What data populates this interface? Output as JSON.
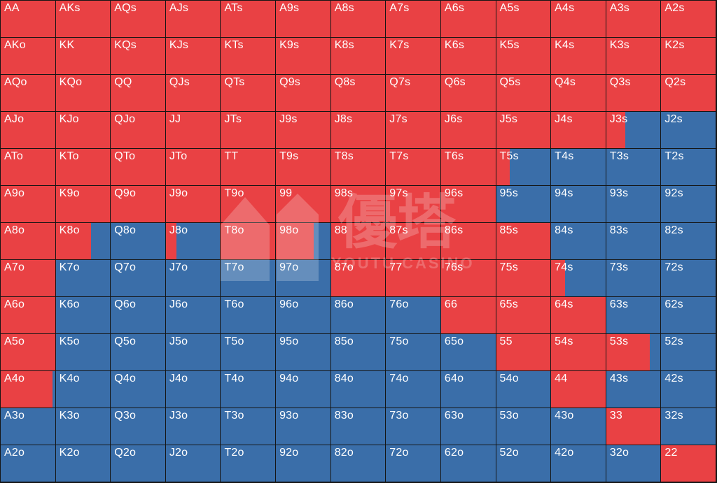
{
  "chart_data": {
    "type": "table",
    "colors": {
      "raise": "#e94144",
      "fold": "#3a6ea9",
      "border": "#151515"
    },
    "legend_note": "",
    "rows": [
      [
        {
          "hand": "AA",
          "freq": 1
        },
        {
          "hand": "AKs",
          "freq": 1
        },
        {
          "hand": "AQs",
          "freq": 1
        },
        {
          "hand": "AJs",
          "freq": 1
        },
        {
          "hand": "ATs",
          "freq": 1
        },
        {
          "hand": "A9s",
          "freq": 1
        },
        {
          "hand": "A8s",
          "freq": 1
        },
        {
          "hand": "A7s",
          "freq": 1
        },
        {
          "hand": "A6s",
          "freq": 1
        },
        {
          "hand": "A5s",
          "freq": 1
        },
        {
          "hand": "A4s",
          "freq": 1
        },
        {
          "hand": "A3s",
          "freq": 1
        },
        {
          "hand": "A2s",
          "freq": 1
        }
      ],
      [
        {
          "hand": "AKo",
          "freq": 1
        },
        {
          "hand": "KK",
          "freq": 1
        },
        {
          "hand": "KQs",
          "freq": 1
        },
        {
          "hand": "KJs",
          "freq": 1
        },
        {
          "hand": "KTs",
          "freq": 1
        },
        {
          "hand": "K9s",
          "freq": 1
        },
        {
          "hand": "K8s",
          "freq": 1
        },
        {
          "hand": "K7s",
          "freq": 1
        },
        {
          "hand": "K6s",
          "freq": 1
        },
        {
          "hand": "K5s",
          "freq": 1
        },
        {
          "hand": "K4s",
          "freq": 1
        },
        {
          "hand": "K3s",
          "freq": 1
        },
        {
          "hand": "K2s",
          "freq": 1
        }
      ],
      [
        {
          "hand": "AQo",
          "freq": 1
        },
        {
          "hand": "KQo",
          "freq": 1
        },
        {
          "hand": "QQ",
          "freq": 1
        },
        {
          "hand": "QJs",
          "freq": 1
        },
        {
          "hand": "QTs",
          "freq": 1
        },
        {
          "hand": "Q9s",
          "freq": 1
        },
        {
          "hand": "Q8s",
          "freq": 1
        },
        {
          "hand": "Q7s",
          "freq": 1
        },
        {
          "hand": "Q6s",
          "freq": 1
        },
        {
          "hand": "Q5s",
          "freq": 1
        },
        {
          "hand": "Q4s",
          "freq": 1
        },
        {
          "hand": "Q3s",
          "freq": 1
        },
        {
          "hand": "Q2s",
          "freq": 1
        }
      ],
      [
        {
          "hand": "AJo",
          "freq": 1
        },
        {
          "hand": "KJo",
          "freq": 1
        },
        {
          "hand": "QJo",
          "freq": 1
        },
        {
          "hand": "JJ",
          "freq": 1
        },
        {
          "hand": "JTs",
          "freq": 1
        },
        {
          "hand": "J9s",
          "freq": 1
        },
        {
          "hand": "J8s",
          "freq": 1
        },
        {
          "hand": "J7s",
          "freq": 1
        },
        {
          "hand": "J6s",
          "freq": 1
        },
        {
          "hand": "J5s",
          "freq": 1
        },
        {
          "hand": "J4s",
          "freq": 1
        },
        {
          "hand": "J3s",
          "freq": 0.35
        },
        {
          "hand": "J2s",
          "freq": 0
        }
      ],
      [
        {
          "hand": "ATo",
          "freq": 1
        },
        {
          "hand": "KTo",
          "freq": 1
        },
        {
          "hand": "QTo",
          "freq": 1
        },
        {
          "hand": "JTo",
          "freq": 1
        },
        {
          "hand": "TT",
          "freq": 1
        },
        {
          "hand": "T9s",
          "freq": 1
        },
        {
          "hand": "T8s",
          "freq": 1
        },
        {
          "hand": "T7s",
          "freq": 1
        },
        {
          "hand": "T6s",
          "freq": 1
        },
        {
          "hand": "T5s",
          "freq": 0.25
        },
        {
          "hand": "T4s",
          "freq": 0
        },
        {
          "hand": "T3s",
          "freq": 0
        },
        {
          "hand": "T2s",
          "freq": 0
        }
      ],
      [
        {
          "hand": "A9o",
          "freq": 1
        },
        {
          "hand": "K9o",
          "freq": 1
        },
        {
          "hand": "Q9o",
          "freq": 1
        },
        {
          "hand": "J9o",
          "freq": 1
        },
        {
          "hand": "T9o",
          "freq": 1
        },
        {
          "hand": "99",
          "freq": 1
        },
        {
          "hand": "98s",
          "freq": 1
        },
        {
          "hand": "97s",
          "freq": 1
        },
        {
          "hand": "96s",
          "freq": 1
        },
        {
          "hand": "95s",
          "freq": 0
        },
        {
          "hand": "94s",
          "freq": 0
        },
        {
          "hand": "93s",
          "freq": 0
        },
        {
          "hand": "92s",
          "freq": 0
        }
      ],
      [
        {
          "hand": "A8o",
          "freq": 1
        },
        {
          "hand": "K8o",
          "freq": 0.65
        },
        {
          "hand": "Q8o",
          "freq": 0
        },
        {
          "hand": "J8o",
          "freq": 0.2
        },
        {
          "hand": "T8o",
          "freq": 1
        },
        {
          "hand": "98o",
          "freq": 0.7
        },
        {
          "hand": "88",
          "freq": 1
        },
        {
          "hand": "87s",
          "freq": 1
        },
        {
          "hand": "86s",
          "freq": 1
        },
        {
          "hand": "85s",
          "freq": 1
        },
        {
          "hand": "84s",
          "freq": 0
        },
        {
          "hand": "83s",
          "freq": 0
        },
        {
          "hand": "82s",
          "freq": 0
        }
      ],
      [
        {
          "hand": "A7o",
          "freq": 1
        },
        {
          "hand": "K7o",
          "freq": 0
        },
        {
          "hand": "Q7o",
          "freq": 0
        },
        {
          "hand": "J7o",
          "freq": 0
        },
        {
          "hand": "T7o",
          "freq": 0
        },
        {
          "hand": "97o",
          "freq": 0
        },
        {
          "hand": "87o",
          "freq": 1
        },
        {
          "hand": "77",
          "freq": 1
        },
        {
          "hand": "76s",
          "freq": 1
        },
        {
          "hand": "75s",
          "freq": 1
        },
        {
          "hand": "74s",
          "freq": 0.25
        },
        {
          "hand": "73s",
          "freq": 0
        },
        {
          "hand": "72s",
          "freq": 0
        }
      ],
      [
        {
          "hand": "A6o",
          "freq": 1
        },
        {
          "hand": "K6o",
          "freq": 0
        },
        {
          "hand": "Q6o",
          "freq": 0
        },
        {
          "hand": "J6o",
          "freq": 0
        },
        {
          "hand": "T6o",
          "freq": 0
        },
        {
          "hand": "96o",
          "freq": 0
        },
        {
          "hand": "86o",
          "freq": 0
        },
        {
          "hand": "76o",
          "freq": 0
        },
        {
          "hand": "66",
          "freq": 1
        },
        {
          "hand": "65s",
          "freq": 1
        },
        {
          "hand": "64s",
          "freq": 1
        },
        {
          "hand": "63s",
          "freq": 0
        },
        {
          "hand": "62s",
          "freq": 0
        }
      ],
      [
        {
          "hand": "A5o",
          "freq": 1
        },
        {
          "hand": "K5o",
          "freq": 0
        },
        {
          "hand": "Q5o",
          "freq": 0
        },
        {
          "hand": "J5o",
          "freq": 0
        },
        {
          "hand": "T5o",
          "freq": 0
        },
        {
          "hand": "95o",
          "freq": 0
        },
        {
          "hand": "85o",
          "freq": 0
        },
        {
          "hand": "75o",
          "freq": 0
        },
        {
          "hand": "65o",
          "freq": 0
        },
        {
          "hand": "55",
          "freq": 1
        },
        {
          "hand": "54s",
          "freq": 1
        },
        {
          "hand": "53s",
          "freq": 0.8
        },
        {
          "hand": "52s",
          "freq": 0
        }
      ],
      [
        {
          "hand": "A4o",
          "freq": 0.95
        },
        {
          "hand": "K4o",
          "freq": 0
        },
        {
          "hand": "Q4o",
          "freq": 0
        },
        {
          "hand": "J4o",
          "freq": 0
        },
        {
          "hand": "T4o",
          "freq": 0
        },
        {
          "hand": "94o",
          "freq": 0
        },
        {
          "hand": "84o",
          "freq": 0
        },
        {
          "hand": "74o",
          "freq": 0
        },
        {
          "hand": "64o",
          "freq": 0
        },
        {
          "hand": "54o",
          "freq": 0
        },
        {
          "hand": "44",
          "freq": 1
        },
        {
          "hand": "43s",
          "freq": 0
        },
        {
          "hand": "42s",
          "freq": 0
        }
      ],
      [
        {
          "hand": "A3o",
          "freq": 0
        },
        {
          "hand": "K3o",
          "freq": 0
        },
        {
          "hand": "Q3o",
          "freq": 0
        },
        {
          "hand": "J3o",
          "freq": 0
        },
        {
          "hand": "T3o",
          "freq": 0
        },
        {
          "hand": "93o",
          "freq": 0
        },
        {
          "hand": "83o",
          "freq": 0
        },
        {
          "hand": "73o",
          "freq": 0
        },
        {
          "hand": "63o",
          "freq": 0
        },
        {
          "hand": "53o",
          "freq": 0
        },
        {
          "hand": "43o",
          "freq": 0
        },
        {
          "hand": "33",
          "freq": 1
        },
        {
          "hand": "32s",
          "freq": 0
        }
      ],
      [
        {
          "hand": "A2o",
          "freq": 0
        },
        {
          "hand": "K2o",
          "freq": 0
        },
        {
          "hand": "Q2o",
          "freq": 0
        },
        {
          "hand": "J2o",
          "freq": 0
        },
        {
          "hand": "T2o",
          "freq": 0
        },
        {
          "hand": "92o",
          "freq": 0
        },
        {
          "hand": "82o",
          "freq": 0
        },
        {
          "hand": "72o",
          "freq": 0
        },
        {
          "hand": "62o",
          "freq": 0
        },
        {
          "hand": "52o",
          "freq": 0
        },
        {
          "hand": "42o",
          "freq": 0
        },
        {
          "hand": "32o",
          "freq": 0
        },
        {
          "hand": "22",
          "freq": 1
        }
      ]
    ]
  },
  "watermark": {
    "text": "YOUTU CASINO",
    "logo_chars": "優塔"
  }
}
